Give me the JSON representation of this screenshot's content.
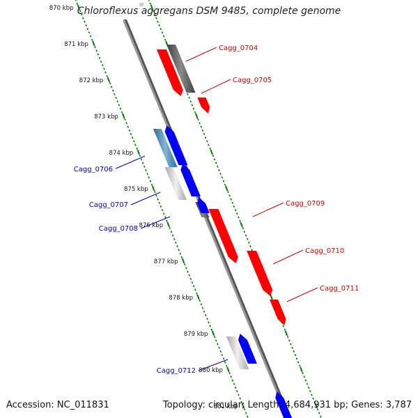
{
  "title": "Chloroflexus aggregans DSM 9485, complete genome",
  "accession": "Accession: NC_011831",
  "topology": "Topology: circular; Length: 4,684,931 bp; Genes: 3,787",
  "colors": {
    "forward": "#ff0000",
    "reverse": "#0000ff",
    "label_forward": "#cc0000",
    "label_reverse": "#0000aa",
    "tick": "#007700",
    "backbone": "#888888"
  },
  "scale": {
    "kbp_labels": [
      "870 kbp",
      "871 kbp",
      "872 kbp",
      "873 kbp",
      "874 kbp",
      "875 kbp",
      "876 kbp",
      "877 kbp",
      "878 kbp",
      "879 kbp",
      "880 kbp",
      "881 kbp"
    ],
    "start_kbp": 870,
    "end_kbp": 881
  },
  "genes_forward": [
    {
      "name": "Cagg_0704"
    },
    {
      "name": "Cagg_0705"
    },
    {
      "name": "Cagg_0709"
    },
    {
      "name": "Cagg_0710"
    },
    {
      "name": "Cagg_0711"
    }
  ],
  "genes_reverse": [
    {
      "name": "Cagg_0706"
    },
    {
      "name": "Cagg_0707"
    },
    {
      "name": "Cagg_0708"
    },
    {
      "name": "Cagg_0712"
    }
  ]
}
